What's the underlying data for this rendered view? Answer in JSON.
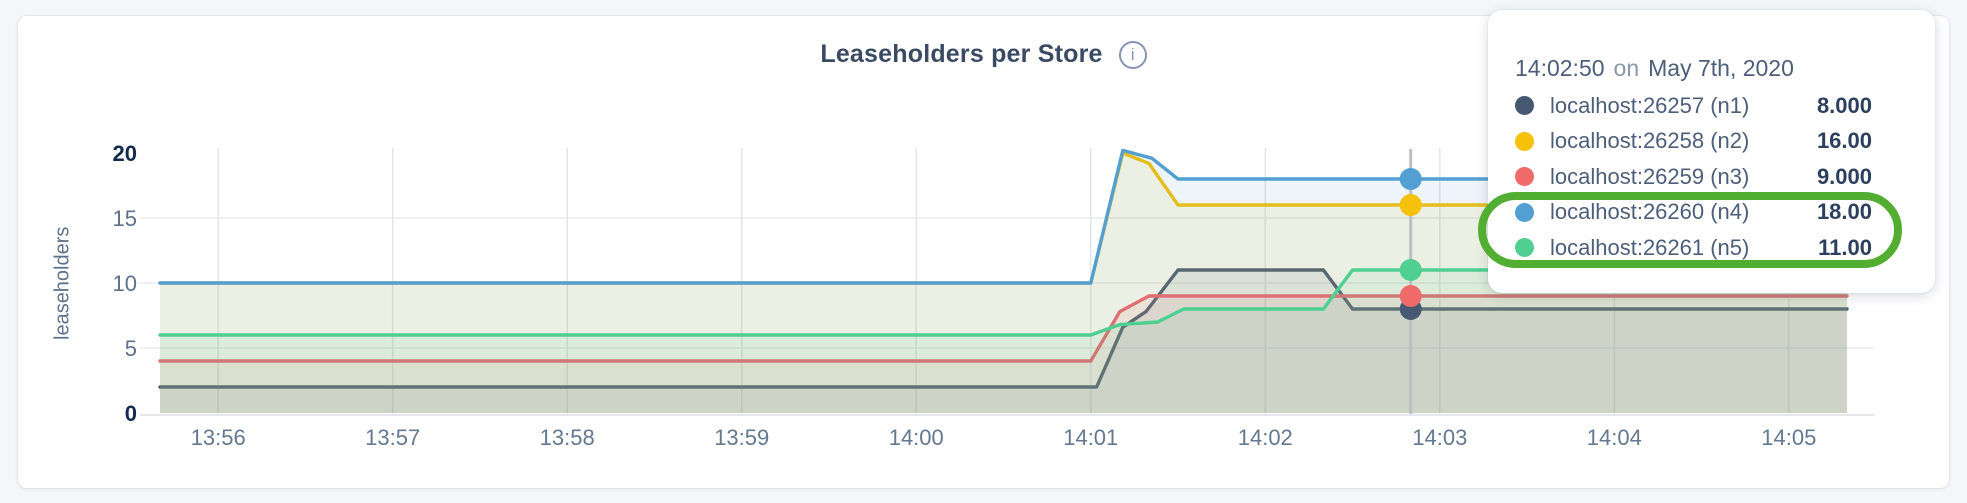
{
  "header": {
    "title": "Leaseholders per Store",
    "info_glyph": "i"
  },
  "tooltip": {
    "time": "14:02:50",
    "separator": "on",
    "date": "May 7th, 2020",
    "rows": [
      {
        "id": "n1",
        "label": "localhost:26257 (n1)",
        "value": "8.000",
        "color": "#475872"
      },
      {
        "id": "n2",
        "label": "localhost:26258 (n2)",
        "value": "16.00",
        "color": "#f5c109"
      },
      {
        "id": "n3",
        "label": "localhost:26259 (n3)",
        "value": "9.000",
        "color": "#f06a6a"
      },
      {
        "id": "n4",
        "label": "localhost:26260 (n4)",
        "value": "18.00",
        "color": "#539fd1"
      },
      {
        "id": "n5",
        "label": "localhost:26261 (n5)",
        "value": "11.00",
        "color": "#4fd092"
      }
    ],
    "highlighted_row_ids": [
      "n4",
      "n5"
    ]
  },
  "annotation": {
    "shape": "rounded-ring",
    "color": "#52ae30"
  },
  "chart_data": {
    "type": "area",
    "title": "Leaseholders per Store",
    "ylabel": "leaseholders",
    "xlabel": "",
    "ylim": [
      0,
      20
    ],
    "y_ticks": [
      0,
      5,
      10,
      15,
      20
    ],
    "x_domain_time": [
      "13:55:40",
      "14:05:20"
    ],
    "x_unit": "seconds after 13:55:00",
    "x_domain": [
      40,
      620
    ],
    "grid": true,
    "legend_position": "tooltip-overlay",
    "x_ticks": [
      {
        "label": "13:56",
        "t": 60
      },
      {
        "label": "13:57",
        "t": 120
      },
      {
        "label": "13:58",
        "t": 180
      },
      {
        "label": "13:59",
        "t": 240
      },
      {
        "label": "14:00",
        "t": 300
      },
      {
        "label": "14:01",
        "t": 360
      },
      {
        "label": "14:02",
        "t": 420
      },
      {
        "label": "14:03",
        "t": 480
      },
      {
        "label": "14:04",
        "t": 540
      },
      {
        "label": "14:05",
        "t": 600
      }
    ],
    "series": [
      {
        "id": "n1",
        "name": "localhost:26257 (n1)",
        "color": "#475872",
        "points": [
          [
            40,
            2
          ],
          [
            362,
            2
          ],
          [
            371,
            6.6
          ],
          [
            379,
            7.8
          ],
          [
            390,
            11
          ],
          [
            440,
            11
          ],
          [
            450,
            8
          ],
          [
            620,
            8
          ]
        ]
      },
      {
        "id": "n2",
        "name": "localhost:26258 (n2)",
        "color": "#f5c109",
        "points": [
          [
            40,
            10
          ],
          [
            360,
            10
          ],
          [
            371,
            20
          ],
          [
            380,
            19.2
          ],
          [
            390,
            16
          ],
          [
            620,
            16
          ]
        ]
      },
      {
        "id": "n3",
        "name": "localhost:26259 (n3)",
        "color": "#f06a6a",
        "points": [
          [
            40,
            4
          ],
          [
            360,
            4
          ],
          [
            370,
            7.8
          ],
          [
            380,
            9
          ],
          [
            620,
            9
          ]
        ]
      },
      {
        "id": "n4",
        "name": "localhost:26260 (n4)",
        "color": "#539fd1",
        "points": [
          [
            40,
            10
          ],
          [
            360,
            10
          ],
          [
            371,
            20.2
          ],
          [
            381,
            19.6
          ],
          [
            390,
            18
          ],
          [
            620,
            18
          ]
        ]
      },
      {
        "id": "n5",
        "name": "localhost:26261 (n5)",
        "color": "#4fd092",
        "points": [
          [
            40,
            6
          ],
          [
            360,
            6
          ],
          [
            370,
            6.8
          ],
          [
            383,
            7
          ],
          [
            392,
            8
          ],
          [
            440,
            8
          ],
          [
            450,
            11
          ],
          [
            620,
            11
          ]
        ]
      }
    ],
    "hover": {
      "time": "14:02:50",
      "t": 470,
      "values": {
        "n1": 8.0,
        "n2": 16.0,
        "n3": 9.0,
        "n4": 18.0,
        "n5": 11.0
      }
    }
  }
}
